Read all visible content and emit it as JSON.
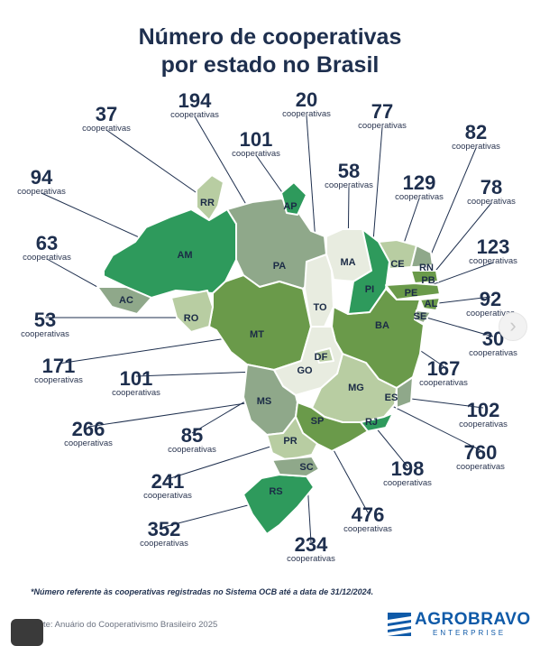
{
  "title_line1": "Número de cooperativas",
  "title_line2": "por estado no Brasil",
  "unit_label": "cooperativas",
  "footnote": "*Número referente às cooperativas registradas no Sistema OCB até a data de 31/12/2024.",
  "source": "te: Anuário do Cooperativismo Brasileiro 2025",
  "logo": {
    "name": "AGROBRAVO",
    "sub": "ENTERPRISE"
  },
  "colors": {
    "dark_green": "#2e9a5c",
    "mid_green": "#6a9a4a",
    "light_green": "#b8cda2",
    "gray_green": "#8fa88a",
    "pale": "#e8ece0",
    "ink": "#1e2f4e",
    "brand_blue": "#0f5aa8"
  },
  "states": [
    {
      "code": "AM",
      "count": "94"
    },
    {
      "code": "PA",
      "count": "194"
    },
    {
      "code": "MT",
      "count": "171"
    },
    {
      "code": "MG",
      "count": "760"
    },
    {
      "code": "BA",
      "count": "167"
    },
    {
      "code": "MS",
      "count": "266"
    },
    {
      "code": "GO",
      "count": "101"
    },
    {
      "code": "MA",
      "count": "58"
    },
    {
      "code": "RS",
      "count": "352"
    },
    {
      "code": "TO",
      "count": "20"
    },
    {
      "code": "PI",
      "count": "77"
    },
    {
      "code": "SP",
      "count": "476"
    },
    {
      "code": "RO",
      "count": "53"
    },
    {
      "code": "RR",
      "count": "37"
    },
    {
      "code": "PR",
      "count": "241"
    },
    {
      "code": "AC",
      "count": "63"
    },
    {
      "code": "CE",
      "count": "129"
    },
    {
      "code": "AP",
      "count": "101"
    },
    {
      "code": "PE",
      "count": "123"
    },
    {
      "code": "SC",
      "count": "234"
    },
    {
      "code": "PB",
      "count": "78"
    },
    {
      "code": "RN",
      "count": "82"
    },
    {
      "code": "ES",
      "count": "102"
    },
    {
      "code": "AL",
      "count": "92"
    },
    {
      "code": "SE",
      "count": "30"
    },
    {
      "code": "RJ",
      "count": "198"
    },
    {
      "code": "DF",
      "count": "85"
    }
  ]
}
